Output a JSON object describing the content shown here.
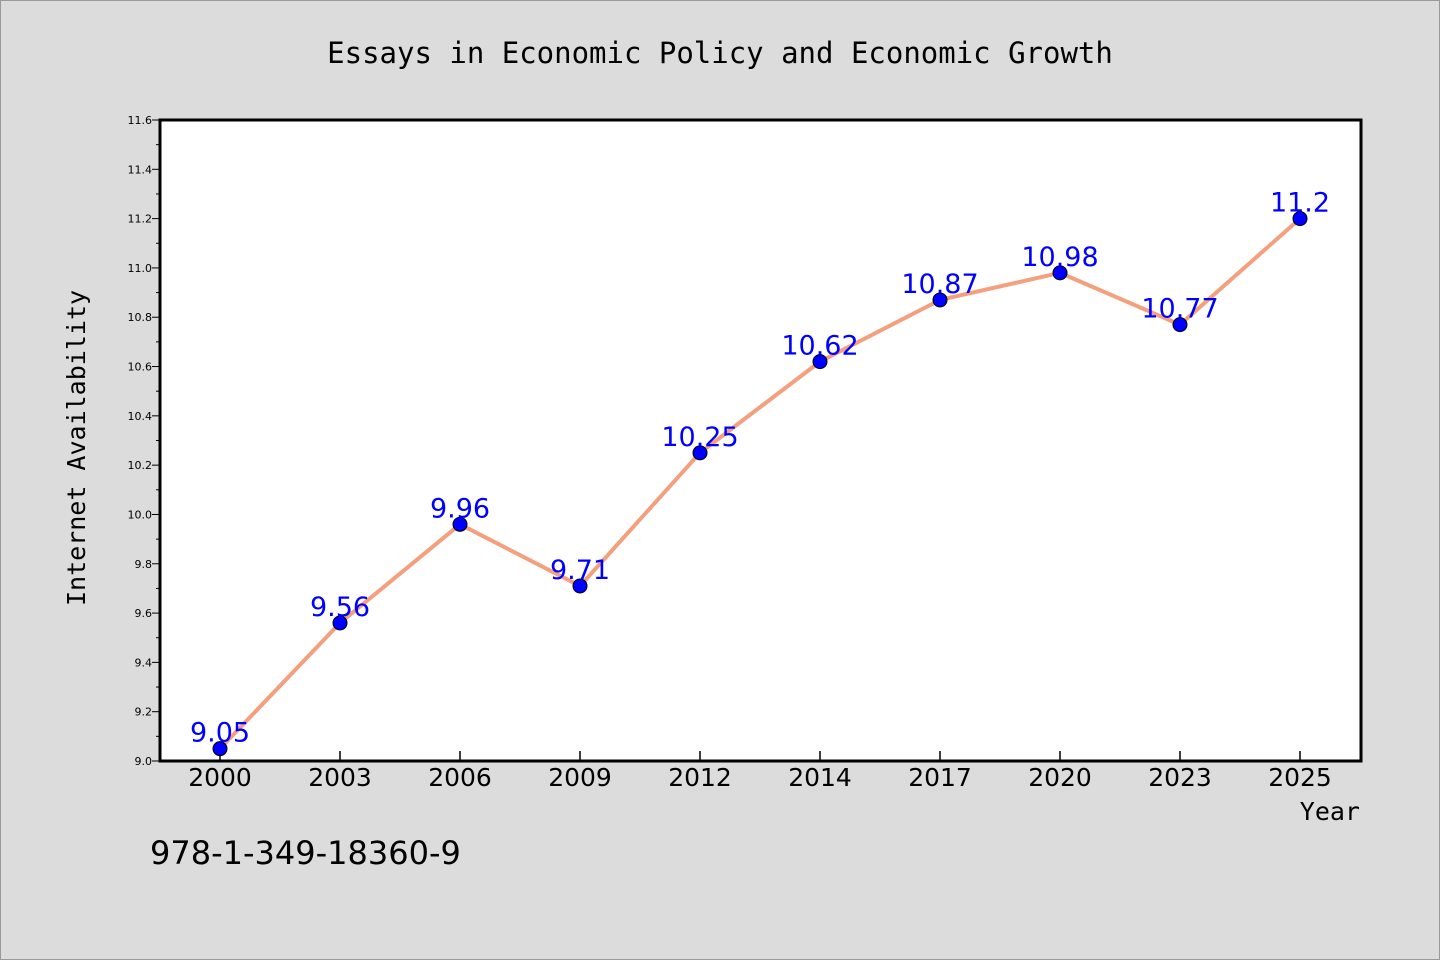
{
  "chart_data": {
    "type": "line",
    "title": "Essays in Economic Policy and Economic Growth",
    "xlabel": "Year",
    "ylabel": "Internet Availability",
    "categories": [
      "2000",
      "2003",
      "2006",
      "2009",
      "2012",
      "2014",
      "2017",
      "2020",
      "2023",
      "2025"
    ],
    "series": [
      {
        "values": [
          9.05,
          9.56,
          9.96,
          9.71,
          10.25,
          10.62,
          10.87,
          10.98,
          10.77,
          11.2
        ],
        "data_labels": [
          "9.05",
          "9.56",
          "9.96",
          "9.71",
          "10.25",
          "10.62",
          "10.87",
          "10.98",
          "10.77",
          "11.2"
        ],
        "line_color": "#f4a07e",
        "marker_color": "#0000ff",
        "label_color": "#0000ff"
      }
    ],
    "ylim": [
      9.0,
      11.6
    ],
    "yticks": [
      "9.0",
      "9.2",
      "9.4",
      "9.6",
      "9.8",
      "10.0",
      "10.2",
      "10.4",
      "10.6",
      "10.8",
      "11.0",
      "11.2",
      "11.4",
      "11.6"
    ],
    "grid": false,
    "legend": false
  },
  "footer": {
    "isbn": "978-1-349-18360-9"
  },
  "colors": {
    "background": "#dcdcdc",
    "plot_background": "#ffffff",
    "axis": "#000000"
  }
}
